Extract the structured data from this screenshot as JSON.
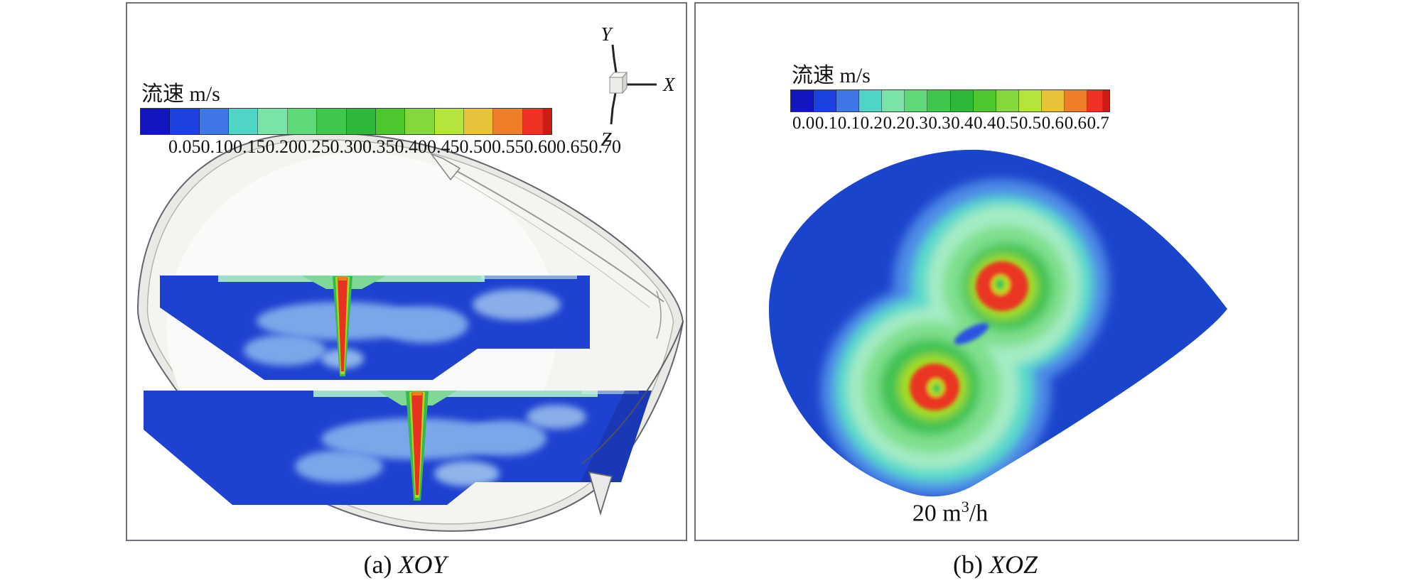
{
  "figure": {
    "background": "#ffffff",
    "panel_border_color": "#6e737c"
  },
  "colorbar": {
    "segment_colors": [
      "#1215c0",
      "#1d41e0",
      "#3f78e6",
      "#4fd5c5",
      "#7ae4a8",
      "#5fd977",
      "#3ec74b",
      "#2eb83a",
      "#4ec62e",
      "#85d83c",
      "#b5e43b",
      "#e8c33a",
      "#ee7e2a",
      "#ee3223"
    ],
    "over_color": "#cf1a16"
  },
  "panels": {
    "a": {
      "caption_prefix": "(a)",
      "caption_label": "XOY",
      "legend": {
        "title": "流速 m/s",
        "ticks": [
          "0.05",
          "0.10",
          "0.15",
          "0.20",
          "0.25",
          "0.30",
          "0.35",
          "0.40",
          "0.45",
          "0.50",
          "0.55",
          "0.60",
          "0.65",
          "0.70"
        ]
      }
    },
    "b": {
      "caption_prefix": "(b)",
      "caption_label": "XOZ",
      "legend": {
        "title": "流速 m/s",
        "ticks": [
          "0.0",
          "0.1",
          "0.1",
          "0.2",
          "0.2",
          "0.3",
          "0.3",
          "0.4",
          "0.4",
          "0.5",
          "0.5",
          "0.6",
          "0.6",
          "0.7"
        ]
      },
      "flow_label": {
        "base": "20 m",
        "sup": "3",
        "rest": "/h"
      }
    }
  },
  "axis_triad": {
    "up": "Y",
    "right": "X",
    "down": "Z"
  },
  "chart_data": [
    {
      "type": "heatmap",
      "view": "XOY",
      "title": "流速 m/s",
      "legend_title": "流速 m/s",
      "colorbar_levels_m_per_s": [
        0.05,
        0.1,
        0.15,
        0.2,
        0.25,
        0.3,
        0.35,
        0.4,
        0.45,
        0.5,
        0.55,
        0.6,
        0.65,
        0.7
      ],
      "colorbar_range": [
        0.0,
        0.7
      ],
      "features": [
        "3D grey tank shell (egg shape tapering to a point at right) viewed in XOY plane",
        "two horizontal liquid slices rendered in deep blue (bulk velocity ~0.05-0.10 m/s)",
        "upper slice: narrow vertical jet at ~38% of panel width, core >=0.70 m/s (red) with green/yellow rim and teal spreading layer along slice top",
        "lower slice: narrow vertical jet at ~52% of panel width, core >=0.70 m/s (red) with green/yellow rim and teal spreading layer",
        "light-blue lobes (~0.10-0.15 m/s) around each jet"
      ]
    },
    {
      "type": "heatmap",
      "view": "XOZ",
      "title": "流速 m/s",
      "legend_title": "流速 m/s",
      "annotation": "20 m³/h",
      "colorbar_levels_m_per_s": [
        0.0,
        0.1,
        0.1,
        0.2,
        0.2,
        0.3,
        0.3,
        0.4,
        0.4,
        0.5,
        0.5,
        0.6,
        0.6,
        0.7
      ],
      "colorbar_range": [
        0.0,
        0.7
      ],
      "features": [
        "teardrop-shaped cross-section filled royal blue (bulk ~0.0-0.1 m/s), point toward the right",
        "two annular impingement hotspots: red rings >=0.6-0.7 m/s with green centres",
        "upper hotspot right of centre, lower hotspot lower-left; both wrapped by yellow-green, green, mint and turquoise contour shells",
        "small isolated blue streak between the two hotspots"
      ]
    }
  ]
}
